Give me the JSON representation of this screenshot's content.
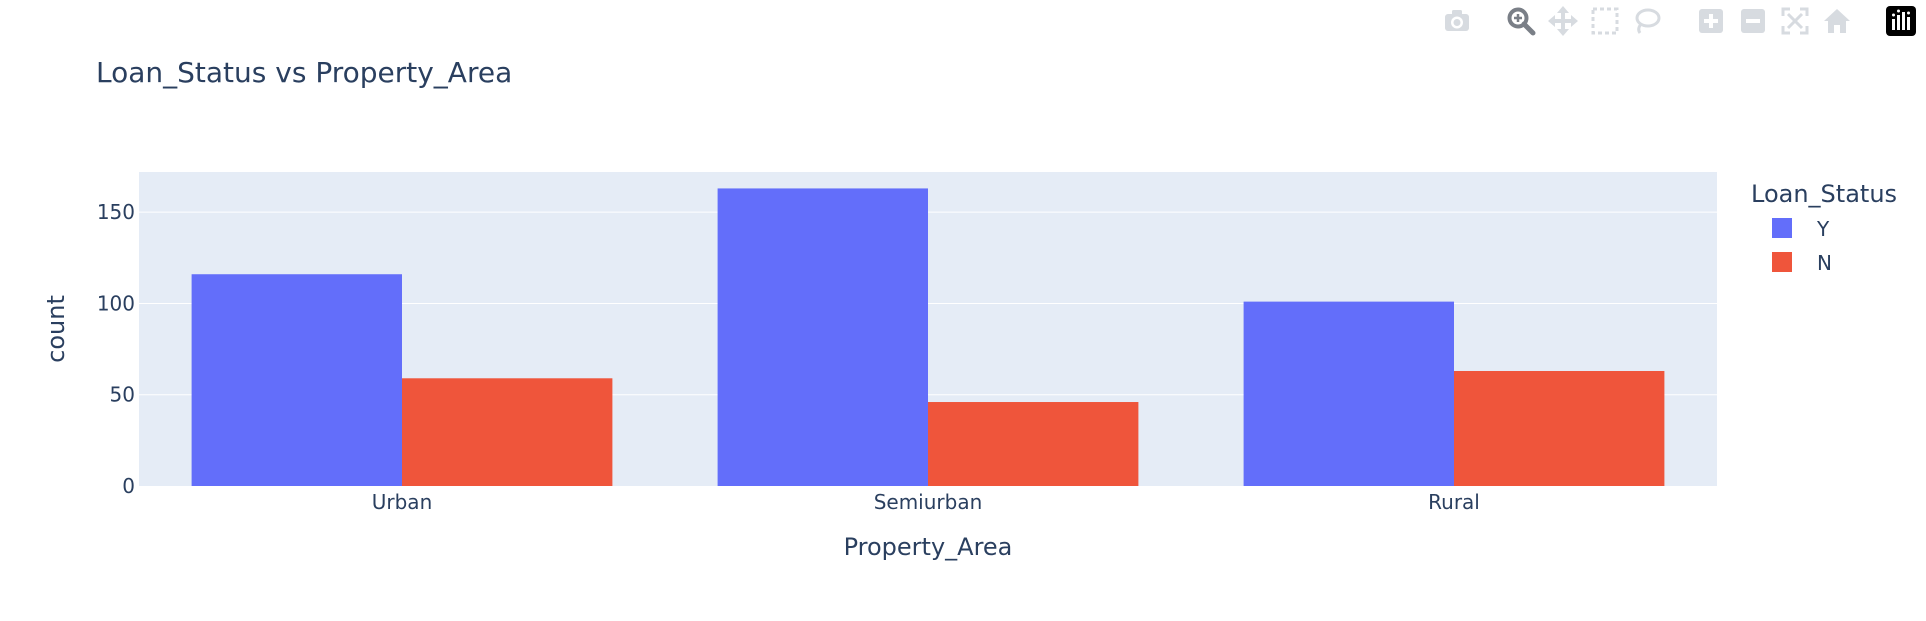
{
  "chart_data": {
    "type": "bar",
    "title": "Loan_Status vs Property_Area",
    "xlabel": "Property_Area",
    "ylabel": "count",
    "categories": [
      "Urban",
      "Semiurban",
      "Rural"
    ],
    "series": [
      {
        "name": "Y",
        "values": [
          116,
          163,
          101
        ],
        "color": "#636efa"
      },
      {
        "name": "N",
        "values": [
          59,
          46,
          63
        ],
        "color": "#ef553b"
      }
    ],
    "ylim": [
      0,
      172
    ],
    "yticks": [
      0,
      50,
      100,
      150
    ],
    "legend_title": "Loan_Status",
    "legend_position": "right",
    "grid": true,
    "barmode": "group"
  },
  "colors": {
    "plot_bg": "#e5ecf6",
    "text": "#2a3f5f",
    "grid": "#ffffff",
    "modebar_icon": "#d7dbe0"
  },
  "modebar": {
    "icons": [
      "camera-icon",
      "zoom-icon",
      "pan-icon",
      "box-select-icon",
      "lasso-select-icon",
      "zoom-in-icon",
      "zoom-out-icon",
      "autoscale-icon",
      "reset-axes-icon",
      "plotly-logo-icon"
    ]
  }
}
